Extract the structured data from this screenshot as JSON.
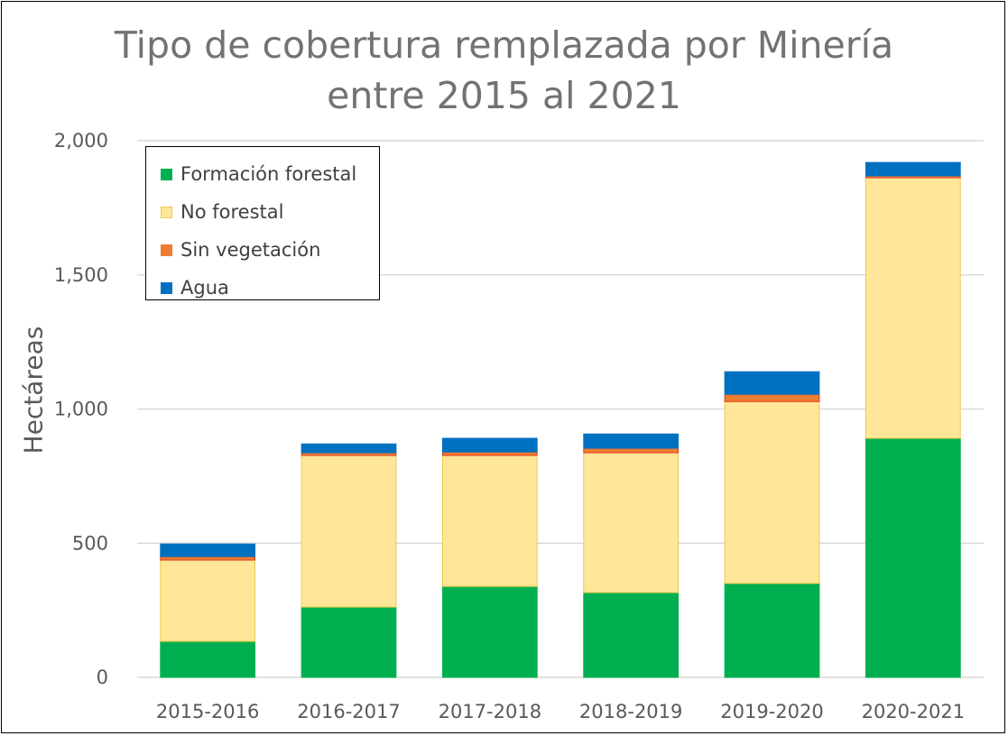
{
  "chart_data": {
    "type": "bar",
    "stacked": true,
    "title": "Tipo de cobertura remplazada por Minería entre 2015 al 2021",
    "title_lines": [
      "Tipo de cobertura remplazada por Minería",
      "entre 2015 al 2021"
    ],
    "xlabel": "",
    "ylabel": "Hectáreas",
    "ylim": [
      0,
      2000
    ],
    "yticks": [
      0,
      500,
      1000,
      1500,
      2000
    ],
    "ytick_labels": [
      "0",
      "500",
      "1,000",
      "1,500",
      "2,000"
    ],
    "grid": true,
    "legend_position": "top-left",
    "categories": [
      "2015-2016",
      "2016-2017",
      "2017-2018",
      "2018-2019",
      "2019-2020",
      "2020-2021"
    ],
    "series": [
      {
        "name": "Formación forestal",
        "color": "#00B050",
        "values": [
          134,
          262,
          339,
          316,
          350,
          891
        ]
      },
      {
        "name": "No forestal",
        "color": "#FFE699",
        "values": [
          303,
          565,
          488,
          521,
          678,
          971
        ]
      },
      {
        "name": "Sin vegetación",
        "color": "#ED7D31",
        "values": [
          13,
          10,
          13,
          17,
          27,
          7
        ]
      },
      {
        "name": "Agua",
        "color": "#0070C0",
        "values": [
          47,
          33,
          51,
          53,
          84,
          50
        ]
      }
    ]
  }
}
